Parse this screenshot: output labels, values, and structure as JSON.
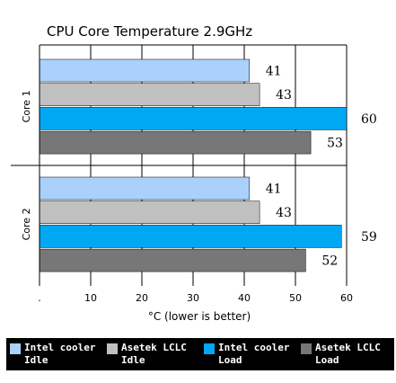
{
  "chart_data": {
    "type": "bar",
    "orientation": "horizontal",
    "title": "CPU Core Temperature 2.9GHz",
    "xlabel": "°C (lower is better)",
    "xlim": [
      0,
      60
    ],
    "xticks": [
      ".",
      "10",
      "20",
      "30",
      "40",
      "50",
      "60"
    ],
    "grid": true,
    "legend_position": "bottom",
    "groups": [
      "Core 1",
      "Core 2"
    ],
    "series": [
      {
        "name": "Intel cooler Idle",
        "color": "#a9d1fb",
        "values": [
          41,
          41
        ]
      },
      {
        "name": "Asetek LCLC Idle",
        "color": "#c0c0c0",
        "values": [
          43,
          43
        ]
      },
      {
        "name": "Intel cooler Load",
        "color": "#00a8f4",
        "values": [
          60,
          59
        ]
      },
      {
        "name": "Asetek LCLC Load",
        "color": "#777777",
        "values": [
          53,
          52
        ]
      }
    ],
    "legend": [
      {
        "line1": "Intel  cooler",
        "line2": "Idle"
      },
      {
        "line1": "Asetek LCLC",
        "line2": "Idle"
      },
      {
        "line1": "Intel  cooler",
        "line2": "Load"
      },
      {
        "line1": "Asetek LCLC",
        "line2": "Load"
      }
    ]
  }
}
